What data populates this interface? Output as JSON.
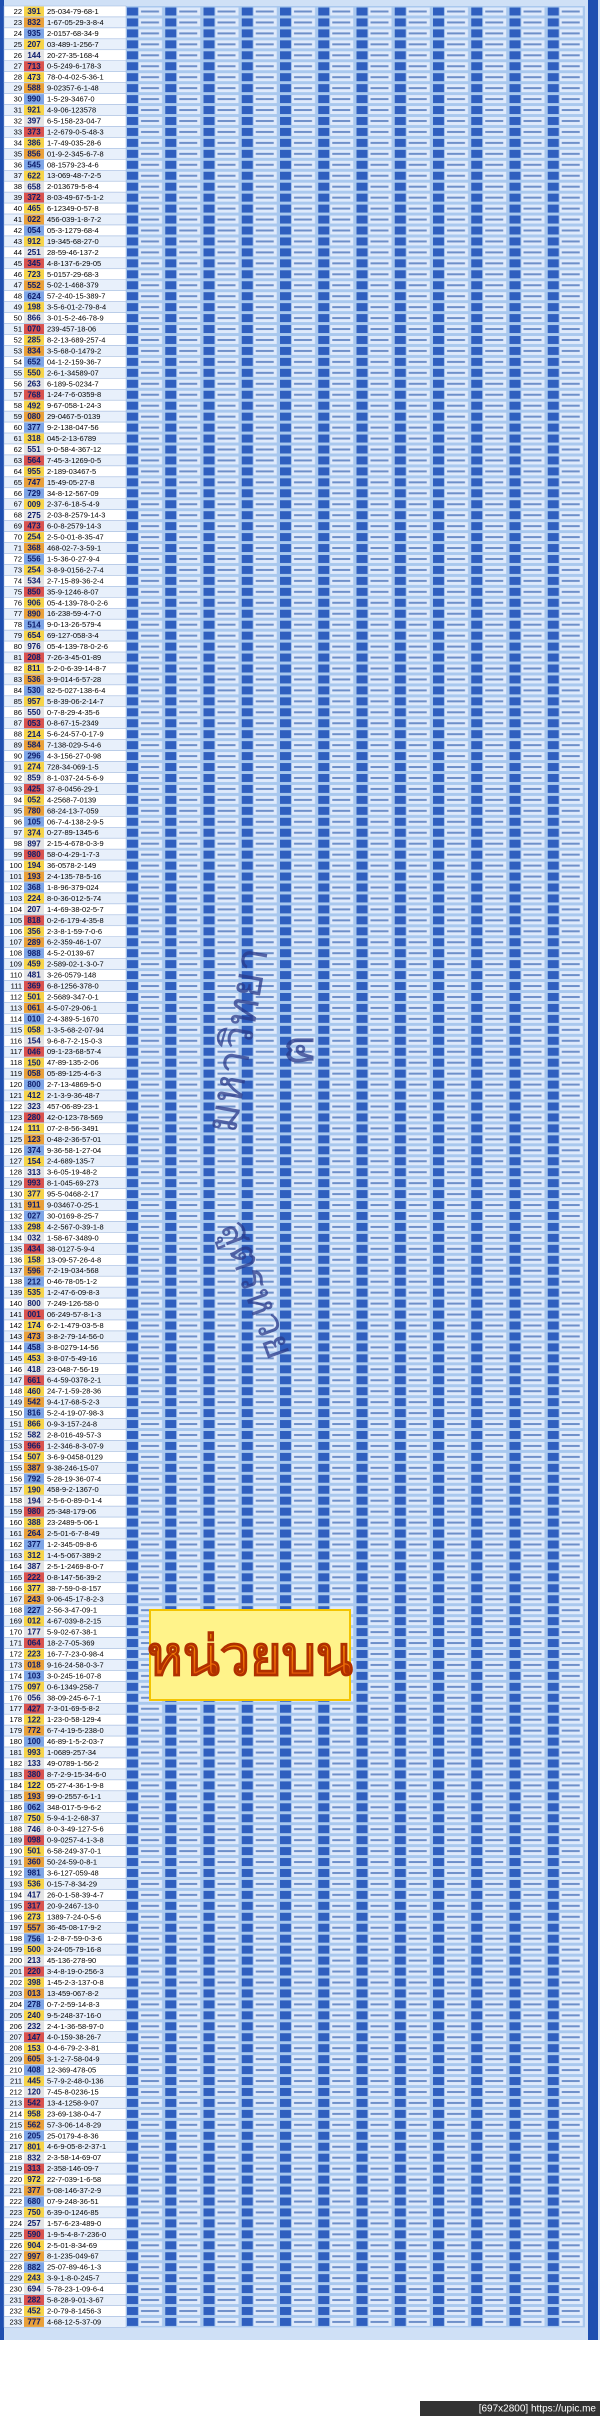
{
  "table": {
    "rows": [
      [
        22,
        "391",
        "25-034-79-68-1"
      ],
      [
        23,
        "832",
        "1-67-05-29-3-8-4"
      ],
      [
        24,
        "935",
        "2-0157-68-34-9"
      ],
      [
        25,
        "207",
        "03-489-1-256-7"
      ],
      [
        26,
        "144",
        "20-27-35-168-4"
      ],
      [
        27,
        "713",
        "0-5-249-6-178-3"
      ],
      [
        28,
        "473",
        "78-0-4-02-5-36-1"
      ],
      [
        29,
        "588",
        "9-02357-6-1-48"
      ],
      [
        30,
        "990",
        "1-5-29-3467-0"
      ],
      [
        31,
        "921",
        "4-9-06-123578"
      ],
      [
        32,
        "397",
        "6-5-158-23-04-7"
      ],
      [
        33,
        "373",
        "1-2-679-0-5-48-3"
      ],
      [
        34,
        "386",
        "1-7-49-035-28-6"
      ],
      [
        35,
        "856",
        "01-9-2-345-6-7-8"
      ],
      [
        36,
        "545",
        "08-1579-23-4-6"
      ],
      [
        37,
        "622",
        "13-069-48-7-2-5"
      ],
      [
        38,
        "658",
        "2-013679-5-8-4"
      ],
      [
        39,
        "372",
        "8-03-49-67-5-1-2"
      ],
      [
        40,
        "465",
        "6-12349-0-57-8"
      ],
      [
        41,
        "022",
        "456-039-1-8-7-2"
      ],
      [
        42,
        "054",
        "05-3-1279-68-4"
      ],
      [
        43,
        "912",
        "19-345-68-27-0"
      ],
      [
        44,
        "251",
        "28-59-46-137-2"
      ],
      [
        45,
        "345",
        "4-8-137-6-29-05"
      ],
      [
        46,
        "723",
        "5-0157-29-68-3"
      ],
      [
        47,
        "552",
        "5-02-1-468-379"
      ],
      [
        48,
        "624",
        "57-2-40-15-389-7"
      ],
      [
        49,
        "198",
        "3-5-6-01-2-79-8-4"
      ],
      [
        50,
        "866",
        "3-01-5-2-46-78-9"
      ],
      [
        51,
        "070",
        "239-457-18-06"
      ],
      [
        52,
        "285",
        "8-2-13-689-257-4"
      ],
      [
        53,
        "834",
        "3-5-68-0-1479-2"
      ],
      [
        54,
        "652",
        "04-1-2-159-36-7"
      ],
      [
        55,
        "550",
        "2-6-1-34589-07"
      ],
      [
        56,
        "263",
        "6-189-5-0234-7"
      ],
      [
        57,
        "768",
        "1-24-7-6-0359-8"
      ],
      [
        58,
        "492",
        "9-67-058-1-24-3"
      ],
      [
        59,
        "080",
        "29-0467-5-0139"
      ],
      [
        60,
        "377",
        "9-2-138-047-56"
      ],
      [
        61,
        "318",
        "045-2-13-6789"
      ],
      [
        62,
        "551",
        "9-0-58-4-367-12"
      ],
      [
        63,
        "564",
        "7-45-3-1269-0-5"
      ],
      [
        64,
        "955",
        "2-189-03467-5"
      ],
      [
        65,
        "747",
        "15-49-05-27-8"
      ],
      [
        66,
        "729",
        "34-8-12-567-09"
      ],
      [
        67,
        "009",
        "2-37-6-18-5-4-9"
      ],
      [
        68,
        "275",
        "2-03-8-2579-14-3"
      ],
      [
        69,
        "473",
        "6-0-8-2579-14-3"
      ],
      [
        70,
        "254",
        "2-5-0-01-8-35-47"
      ],
      [
        71,
        "368",
        "468-02-7-3-59-1"
      ],
      [
        72,
        "556",
        "1-5-36-0-27-9-4"
      ],
      [
        73,
        "254",
        "3-8-9-0156-2-7-4"
      ],
      [
        74,
        "534",
        "2-7-15-89-36-2-4"
      ],
      [
        75,
        "850",
        "35-9-1246-8-07"
      ],
      [
        76,
        "906",
        "05-4-139-78-0-2-6"
      ],
      [
        77,
        "890",
        "16-238-59-4-7-0"
      ],
      [
        78,
        "514",
        "9-0-13-26-579-4"
      ],
      [
        79,
        "654",
        "69-127-058-3-4"
      ],
      [
        80,
        "976",
        "05-4-139-78-0-2-6"
      ],
      [
        81,
        "208",
        "7-26-3-45-01-89"
      ],
      [
        82,
        "811",
        "5-2-0-6-39-14-8-7"
      ],
      [
        83,
        "536",
        "3-9-014-6-57-28"
      ],
      [
        84,
        "530",
        "82-5-027-138-6-4"
      ],
      [
        85,
        "957",
        "5-8-39-06-2-14-7"
      ],
      [
        86,
        "550",
        "0-7-8-29-4-35-6"
      ],
      [
        87,
        "053",
        "0-8-67-15-2349"
      ],
      [
        88,
        "214",
        "5-6-24-57-0-17-9"
      ],
      [
        89,
        "584",
        "7-138-029-5-4-6"
      ],
      [
        90,
        "296",
        "4-3-156-27-0-98"
      ],
      [
        91,
        "274",
        "728-34-069-1-5"
      ],
      [
        92,
        "859",
        "8-1-037-24-5-6-9"
      ],
      [
        93,
        "425",
        "37-8-0456-29-1"
      ],
      [
        94,
        "052",
        "4-2568-7-0139"
      ],
      [
        95,
        "780",
        "68-24-13-7-059"
      ],
      [
        96,
        "105",
        "06-7-4-138-2-9-5"
      ],
      [
        97,
        "374",
        "0-27-89-1345-6"
      ],
      [
        98,
        "897",
        "2-15-4-678-0-3-9"
      ],
      [
        99,
        "980",
        "58-0-4-29-1-7-3"
      ],
      [
        100,
        "194",
        "36-0578-2-149"
      ],
      [
        101,
        "193",
        "2-4-135-78-5-16"
      ],
      [
        102,
        "368",
        "1-8-96-379-024"
      ],
      [
        103,
        "224",
        "8-0-36-012-5-74"
      ],
      [
        104,
        "207",
        "1-4-69-38-02-5-7"
      ],
      [
        105,
        "818",
        "0-2-6-179-4-35-8"
      ],
      [
        106,
        "356",
        "2-3-8-1-59-7-0-6"
      ],
      [
        107,
        "289",
        "6-2-359-46-1-07"
      ],
      [
        108,
        "988",
        "4-5-2-0139-67"
      ],
      [
        109,
        "459",
        "2-589-02-1-3-0-7"
      ],
      [
        110,
        "481",
        "3-26-0579-148"
      ],
      [
        111,
        "369",
        "6-8-1256-378-0"
      ],
      [
        112,
        "501",
        "2-5689-347-0-1"
      ],
      [
        113,
        "061",
        "4-5-07-29-06-1"
      ],
      [
        114,
        "010",
        "2-4-389-5-1670"
      ],
      [
        115,
        "058",
        "1-3-5-68-2-07-94"
      ],
      [
        116,
        "154",
        "9-6-8-7-2-15-0-3"
      ],
      [
        117,
        "046",
        "09-1-23-68-57-4"
      ],
      [
        118,
        "150",
        "47-89-135-2-06"
      ],
      [
        119,
        "058",
        "05-89-125-4-6-3"
      ],
      [
        120,
        "800",
        "2-7-13-4869-5-0"
      ],
      [
        121,
        "412",
        "2-1-3-9-36-48-7"
      ],
      [
        122,
        "323",
        "457-06-89-23-1"
      ],
      [
        123,
        "280",
        "42-0-123-78-569"
      ],
      [
        124,
        "111",
        "07-2-8-56-3491"
      ],
      [
        125,
        "123",
        "0-48-2-36-57-01"
      ],
      [
        126,
        "374",
        "9-36-58-1-27-04"
      ],
      [
        127,
        "154",
        "2-4-689-135-7"
      ],
      [
        128,
        "313",
        "3-6-05-19-48-2"
      ],
      [
        129,
        "993",
        "8-1-045-69-273"
      ],
      [
        130,
        "377",
        "95-5-0468-2-17"
      ],
      [
        131,
        "911",
        "9-03467-0-25-1"
      ],
      [
        132,
        "027",
        "30-0169-8-25-7"
      ],
      [
        133,
        "298",
        "4-2-567-0-39-1-8"
      ],
      [
        134,
        "032",
        "1-58-67-3489-0"
      ],
      [
        135,
        "434",
        "38-0127-5-9-4"
      ],
      [
        136,
        "158",
        "13-09-57-26-4-8"
      ],
      [
        137,
        "596",
        "7-2-19-034-568"
      ],
      [
        138,
        "212",
        "0-46-78-05-1-2"
      ],
      [
        139,
        "535",
        "1-2-47-6-09-8-3"
      ],
      [
        140,
        "800",
        "7-249-126-58-0"
      ],
      [
        141,
        "001",
        "06-249-57-8-1-3"
      ],
      [
        142,
        "174",
        "6-2-1-479-03-5-8"
      ],
      [
        143,
        "473",
        "3-8-2-79-14-56-0"
      ],
      [
        144,
        "458",
        "3-8-0279-14-56"
      ],
      [
        145,
        "453",
        "3-8-07-5-49-16"
      ],
      [
        146,
        "418",
        "23-048-7-56-19"
      ],
      [
        147,
        "661",
        "6-4-59-0378-2-1"
      ],
      [
        148,
        "460",
        "24-7-1-59-28-36"
      ],
      [
        149,
        "542",
        "9-4-17-68-5-2-3"
      ],
      [
        150,
        "816",
        "5-2-4-19-07-98-3"
      ],
      [
        151,
        "866",
        "0-9-3-157-24-8"
      ],
      [
        152,
        "582",
        "2-8-016-49-57-3"
      ],
      [
        153,
        "966",
        "1-2-346-8-3-07-9"
      ],
      [
        154,
        "507",
        "3-6-9-0458-0129"
      ],
      [
        155,
        "387",
        "9-38-246-15-07"
      ],
      [
        156,
        "792",
        "5-28-19-36-07-4"
      ],
      [
        157,
        "190",
        "458-9-2-1367-0"
      ],
      [
        158,
        "194",
        "2-5-6-0-89-0-1-4"
      ],
      [
        159,
        "980",
        "25-348-179-06"
      ],
      [
        160,
        "388",
        "23-2489-5-06-1"
      ],
      [
        161,
        "264",
        "2-5-01-6-7-8-49"
      ],
      [
        162,
        "377",
        "1-2-345-09-8-6"
      ],
      [
        163,
        "312",
        "1-4-5-067-389-2"
      ],
      [
        164,
        "387",
        "2-5-1-2469-8-0-7"
      ],
      [
        165,
        "222",
        "0-8-147-56-39-2"
      ],
      [
        166,
        "377",
        "38-7-59-0-8-157"
      ],
      [
        167,
        "243",
        "9-06-45-17-8-2-3"
      ],
      [
        168,
        "227",
        "2-56-3-47-09-1"
      ],
      [
        169,
        "012",
        "4-67-039-8-2-15"
      ],
      [
        170,
        "177",
        "5-9-02-67-38-1"
      ],
      [
        171,
        "064",
        "18-2-7-05-369"
      ],
      [
        172,
        "223",
        "16-7-7-23-0-98-4"
      ],
      [
        173,
        "018",
        "9-16-24-58-0-3-7"
      ],
      [
        174,
        "103",
        "3-0-245-16-07-8"
      ],
      [
        175,
        "097",
        "0-6-1349-258-7"
      ],
      [
        176,
        "056",
        "38-09-245-6-7-1"
      ],
      [
        177,
        "427",
        "7-3-01-69-5-8-2"
      ],
      [
        178,
        "122",
        "1-23-0-58-129-4"
      ],
      [
        179,
        "772",
        "6-7-4-19-5-238-0"
      ],
      [
        180,
        "100",
        "46-89-1-5-2-03-7"
      ],
      [
        181,
        "993",
        "1-0689-257-34"
      ],
      [
        182,
        "133",
        "49-0789-1-56-2"
      ],
      [
        183,
        "380",
        "8-7-2-9-15-34-6-0"
      ],
      [
        184,
        "122",
        "05-27-4-36-1-9-8"
      ],
      [
        185,
        "193",
        "99-0-2557-6-1-1"
      ],
      [
        186,
        "062",
        "348-017-5-9-6-2"
      ],
      [
        187,
        "750",
        "5-9-4-1-2-68-37"
      ],
      [
        188,
        "746",
        "8-0-3-49-127-5-6"
      ],
      [
        189,
        "098",
        "0-9-0257-4-1-3-8"
      ],
      [
        190,
        "501",
        "6-58-249-37-0-1"
      ],
      [
        191,
        "360",
        "50-24-59-0-8-1"
      ],
      [
        192,
        "981",
        "3-6-127-059-48"
      ],
      [
        193,
        "536",
        "0-15-7-8-34-29"
      ],
      [
        194,
        "417",
        "26-0-1-58-39-4-7"
      ],
      [
        195,
        "317",
        "20-9-2467-13-0"
      ],
      [
        196,
        "273",
        "1389-7-24-0-5-6"
      ],
      [
        197,
        "557",
        "36-45-08-17-9-2"
      ],
      [
        198,
        "756",
        "1-2-8-7-59-0-3-6"
      ],
      [
        199,
        "500",
        "3-24-05-79-16-8"
      ],
      [
        200,
        "213",
        "45-136-278-90"
      ],
      [
        201,
        "220",
        "3-4-8-19-0-256-3"
      ],
      [
        202,
        "398",
        "1-45-2-3-137-0-8"
      ],
      [
        203,
        "013",
        "13-459-067-8-2"
      ],
      [
        204,
        "278",
        "0-7-2-59-14-8-3"
      ],
      [
        205,
        "240",
        "9-5-248-37-16-0"
      ],
      [
        206,
        "232",
        "2-4-1-36-58-97-0"
      ],
      [
        207,
        "147",
        "4-0-159-38-26-7"
      ],
      [
        208,
        "153",
        "0-4-6-79-2-3-81"
      ],
      [
        209,
        "605",
        "3-1-2-7-58-04-9"
      ],
      [
        210,
        "408",
        "12-369-478-05"
      ],
      [
        211,
        "445",
        "5-7-9-2-48-0-136"
      ],
      [
        212,
        "120",
        "7-45-8-0236-15"
      ],
      [
        213,
        "542",
        "13-4-1258-9-07"
      ],
      [
        214,
        "958",
        "23-69-138-0-4-7"
      ],
      [
        215,
        "562",
        "57-3-06-14-8-29"
      ],
      [
        216,
        "205",
        "25-0179-4-8-36"
      ],
      [
        217,
        "801",
        "4-6-9-05-8-2-37-1"
      ],
      [
        218,
        "832",
        "2-3-58-14-69-07"
      ],
      [
        219,
        "313",
        "2-358-146-09-7"
      ],
      [
        220,
        "972",
        "22-7-039-1-6-58"
      ],
      [
        221,
        "377",
        "5-08-146-37-2-9"
      ],
      [
        222,
        "680",
        "07-9-248-36-51"
      ],
      [
        223,
        "750",
        "6-39-0-1246-85"
      ],
      [
        224,
        "257",
        "1-57-6-23-489-0"
      ],
      [
        225,
        "590",
        "1-9-5-4-8-7-236-0"
      ],
      [
        226,
        "904",
        "2-5-01-8-34-69"
      ],
      [
        227,
        "997",
        "8-1-235-049-67"
      ],
      [
        228,
        "882",
        "25-07-89-46-1-3"
      ],
      [
        229,
        "243",
        "3-9-1-8-0-245-7"
      ],
      [
        230,
        "694",
        "5-78-23-1-09-6-4"
      ],
      [
        231,
        "282",
        "5-8-28-9-01-3-67"
      ],
      [
        232,
        "452",
        "2-0-79-8-1456-3"
      ],
      [
        233,
        "777",
        "4-68-12-5-37-09"
      ]
    ]
  },
  "overlay": {
    "arc_text": "มหาวิทยา",
    "mark": "ฅ",
    "formula_text": "สูตรหวย",
    "banner": "หน่วยบน"
  },
  "footer": {
    "label": "[697x2800] https://upic.me"
  }
}
